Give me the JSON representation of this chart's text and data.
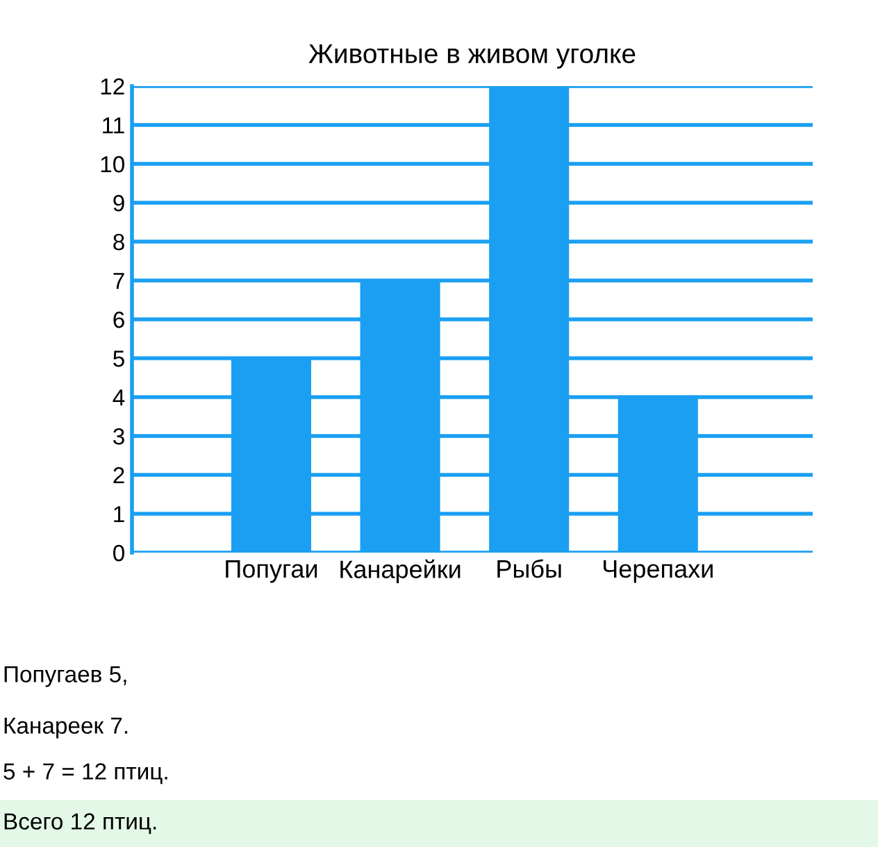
{
  "chart_data": {
    "type": "bar",
    "title": "Животные в живом уголке",
    "categories": [
      "Попугаи",
      "Канарейки",
      "Рыбы",
      "Черепахи"
    ],
    "values": [
      5,
      7,
      12,
      4
    ],
    "color": "#1a9ff2",
    "ylim": [
      0,
      12
    ],
    "yticks": [
      0,
      1,
      2,
      3,
      4,
      5,
      6,
      7,
      8,
      9,
      10,
      11,
      12
    ],
    "grid": "y",
    "annotations": [
      "Попугаев 5,",
      "Канареек 7.",
      "5 + 7 = 12 птиц.",
      "Всего 12 птиц."
    ]
  }
}
